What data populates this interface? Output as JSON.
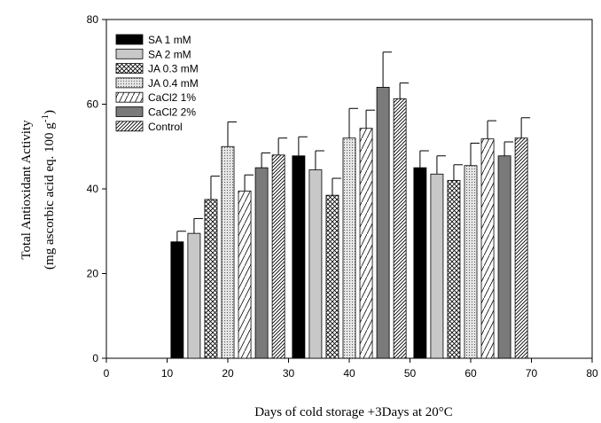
{
  "chart_data": {
    "type": "bar",
    "xlabel": "Days of cold storage +3Days at 20°C",
    "ylabel_line1": "Total Antioxidant Activity",
    "ylabel_line2_prefix": "(mg ascorbic acid eq. 100 g",
    "ylabel_line2_sup": "-1",
    "ylabel_line2_suffix": ")",
    "xlim": [
      0,
      80
    ],
    "ylim": [
      0,
      80
    ],
    "x_ticks": [
      0,
      10,
      20,
      30,
      40,
      50,
      60,
      70,
      80
    ],
    "y_ticks": [
      0,
      20,
      40,
      60,
      80
    ],
    "legend_position": "top-left",
    "group_centers": [
      20,
      40,
      60
    ],
    "series": [
      {
        "name": "SA 1 mM",
        "fill": "solid-black",
        "values": [
          27.5,
          47.8,
          45.0
        ],
        "errors": [
          2.5,
          4.5,
          4.0
        ]
      },
      {
        "name": "SA 2 mM",
        "fill": "solid-lightgray",
        "values": [
          29.5,
          44.5,
          43.5
        ],
        "errors": [
          3.5,
          4.5,
          4.3
        ]
      },
      {
        "name": "JA 0.3 mM",
        "fill": "crosshatch",
        "values": [
          37.5,
          38.5,
          42.0
        ],
        "errors": [
          5.5,
          4.0,
          3.7
        ]
      },
      {
        "name": "JA 0.4 mM",
        "fill": "dots",
        "values": [
          50.0,
          52.0,
          45.5
        ],
        "errors": [
          5.8,
          7.0,
          5.3
        ]
      },
      {
        "name": "CaCl2 1%",
        "fill": "diagonal-sparse",
        "values": [
          39.5,
          54.3,
          51.8
        ],
        "errors": [
          3.8,
          4.3,
          4.3
        ]
      },
      {
        "name": "CaCl2 2%",
        "fill": "solid-darkgray",
        "values": [
          45.0,
          64.0,
          47.8
        ],
        "errors": [
          3.5,
          8.3,
          3.3
        ]
      },
      {
        "name": "Control",
        "fill": "diagonal-dense",
        "values": [
          48.0,
          61.3,
          52.0
        ],
        "errors": [
          4.0,
          3.7,
          4.8
        ]
      }
    ]
  }
}
